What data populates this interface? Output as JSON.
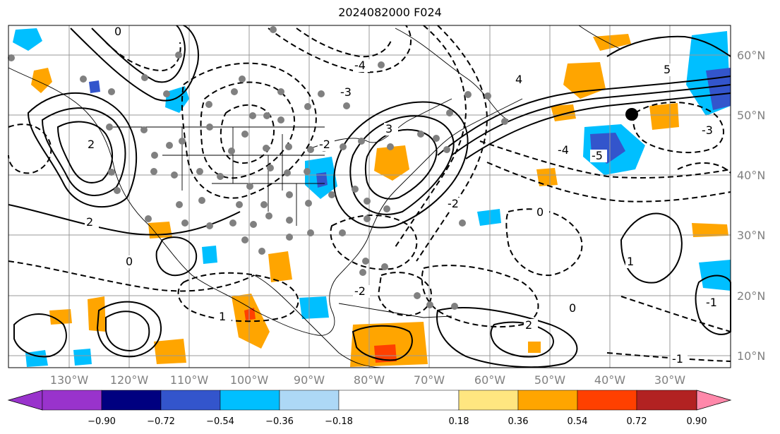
{
  "map": {
    "title": "2024082000 F024",
    "latitude_labels": [
      "60°N",
      "50°N",
      "40°N",
      "30°N",
      "20°N",
      "10°N"
    ],
    "longitude_labels": [
      "130°W",
      "120°W",
      "110°W",
      "100°W",
      "90°W",
      "80°W",
      "70°W",
      "60°W",
      "50°W",
      "40°W",
      "30°W"
    ],
    "contour_labels": [
      "0",
      "2",
      "-2",
      "-4",
      "-3",
      "3",
      "4",
      "5",
      "-5",
      "1",
      "-1",
      "0",
      "2",
      "-2",
      "-3",
      "-4",
      "1",
      "2",
      "-2",
      "0",
      "0",
      "-1"
    ],
    "colorbar": {
      "ticks": [
        "−0.90",
        "−0.72",
        "−0.54",
        "−0.36",
        "−0.18",
        "0.18",
        "0.36",
        "0.54",
        "0.72",
        "0.90"
      ],
      "colors": [
        "#9933cc",
        "#000080",
        "#3355cc",
        "#00bfff",
        "#add8f6",
        "#ffffff",
        "#ffe680",
        "#ffa500",
        "#ff4000",
        "#b22222",
        "#ff88aa"
      ]
    }
  }
}
